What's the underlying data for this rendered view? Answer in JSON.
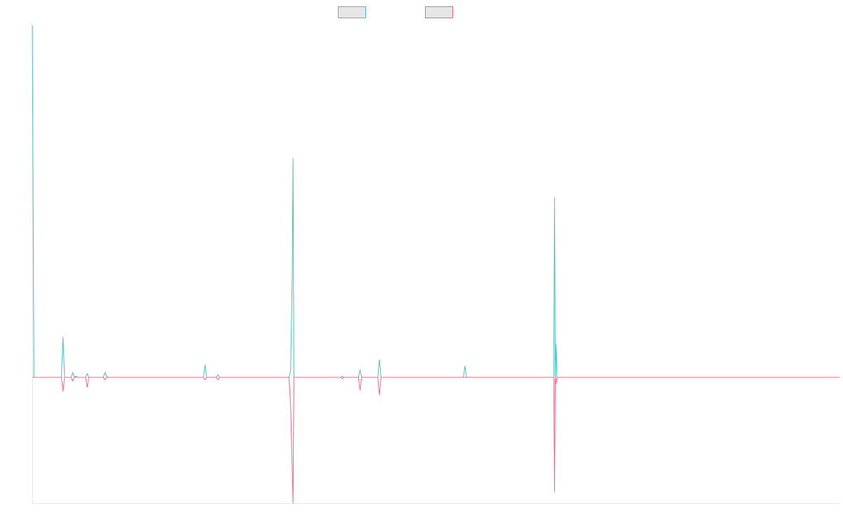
{
  "chart_data": {
    "type": "line",
    "title": "",
    "xlabel": "",
    "ylabel": "",
    "legend_position": "top-center",
    "grid": false,
    "x_range": [
      0,
      1000
    ],
    "y_range": [
      -100,
      280
    ],
    "series": [
      {
        "color": "#4bc0c0",
        "fill": "#e6e6e6",
        "points": [
          [
            0,
            280
          ],
          [
            2,
            0
          ],
          [
            36,
            0
          ],
          [
            38,
            32
          ],
          [
            40,
            0
          ],
          [
            48,
            0
          ],
          [
            50,
            4
          ],
          [
            52,
            0
          ],
          [
            54,
            1
          ],
          [
            56,
            0
          ],
          [
            66,
            0
          ],
          [
            68,
            3
          ],
          [
            70,
            0
          ],
          [
            88,
            0
          ],
          [
            90,
            4
          ],
          [
            92,
            1
          ],
          [
            94,
            0
          ],
          [
            212,
            0
          ],
          [
            214,
            10
          ],
          [
            216,
            0
          ],
          [
            228,
            0
          ],
          [
            230,
            2
          ],
          [
            232,
            0
          ],
          [
            318,
            0
          ],
          [
            320,
            5
          ],
          [
            322,
            80
          ],
          [
            323,
            174
          ],
          [
            324,
            0
          ],
          [
            382,
            0
          ],
          [
            384,
            1
          ],
          [
            386,
            0
          ],
          [
            404,
            0
          ],
          [
            406,
            6
          ],
          [
            408,
            0
          ],
          [
            428,
            0
          ],
          [
            430,
            14
          ],
          [
            432,
            0
          ],
          [
            534,
            0
          ],
          [
            536,
            9
          ],
          [
            538,
            0
          ],
          [
            646,
            0
          ],
          [
            647,
            143
          ],
          [
            648,
            0
          ],
          [
            649,
            26
          ],
          [
            650,
            0
          ],
          [
            652,
            0
          ],
          [
            1000,
            0
          ]
        ]
      },
      {
        "color": "#ff6384",
        "fill": "#e6e6e6",
        "points": [
          [
            0,
            0
          ],
          [
            36,
            0
          ],
          [
            38,
            -11
          ],
          [
            40,
            0
          ],
          [
            48,
            0
          ],
          [
            50,
            -3
          ],
          [
            52,
            0
          ],
          [
            66,
            0
          ],
          [
            68,
            -8
          ],
          [
            70,
            0
          ],
          [
            88,
            0
          ],
          [
            90,
            -2
          ],
          [
            92,
            0
          ],
          [
            212,
            0
          ],
          [
            214,
            -2
          ],
          [
            216,
            0
          ],
          [
            228,
            0
          ],
          [
            230,
            -2
          ],
          [
            232,
            0
          ],
          [
            318,
            0
          ],
          [
            320,
            -22
          ],
          [
            323,
            -100
          ],
          [
            324,
            0
          ],
          [
            382,
            0
          ],
          [
            384,
            -1
          ],
          [
            386,
            0
          ],
          [
            404,
            0
          ],
          [
            406,
            -10
          ],
          [
            408,
            0
          ],
          [
            428,
            0
          ],
          [
            430,
            -14
          ],
          [
            432,
            0
          ],
          [
            646,
            0
          ],
          [
            647,
            -91
          ],
          [
            648,
            0
          ],
          [
            649,
            -5
          ],
          [
            650,
            0
          ],
          [
            652,
            0
          ],
          [
            1000,
            0
          ]
        ]
      }
    ]
  }
}
